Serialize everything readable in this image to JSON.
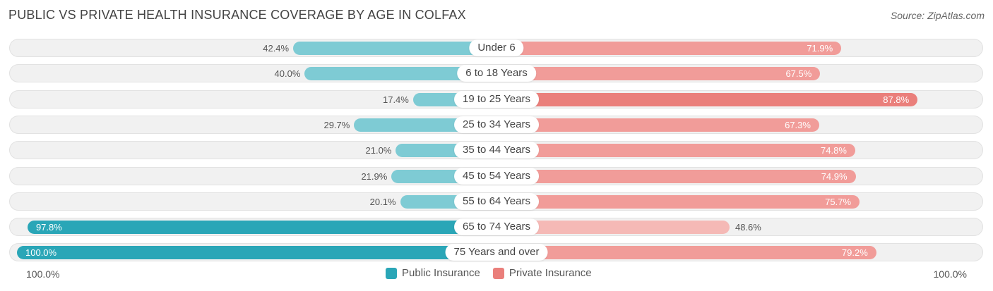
{
  "header": {
    "title": "PUBLIC VS PRIVATE HEALTH INSURANCE COVERAGE BY AGE IN COLFAX",
    "source": "Source: ZipAtlas.com"
  },
  "colors": {
    "public": "#7ecbd4",
    "public_strong": "#2aa6b7",
    "private": "#f19c99",
    "private_strong": "#ea7f7b"
  },
  "chart_data": {
    "type": "bar",
    "orientation": "horizontal-diverging",
    "title": "PUBLIC VS PRIVATE HEALTH INSURANCE COVERAGE BY AGE IN COLFAX",
    "categories": [
      "Under 6",
      "6 to 18 Years",
      "19 to 25 Years",
      "25 to 34 Years",
      "35 to 44 Years",
      "45 to 54 Years",
      "55 to 64 Years",
      "65 to 74 Years",
      "75 Years and over"
    ],
    "series": [
      {
        "name": "Public Insurance",
        "values": [
          42.4,
          40.0,
          17.4,
          29.7,
          21.0,
          21.9,
          20.1,
          97.8,
          100.0
        ],
        "labels": [
          "42.4%",
          "40.0%",
          "17.4%",
          "29.7%",
          "21.0%",
          "21.9%",
          "20.1%",
          "97.8%",
          "100.0%"
        ]
      },
      {
        "name": "Private Insurance",
        "values": [
          71.9,
          67.5,
          87.8,
          67.3,
          74.8,
          74.9,
          75.7,
          48.6,
          79.2
        ],
        "labels": [
          "71.9%",
          "67.5%",
          "87.8%",
          "67.3%",
          "74.8%",
          "74.9%",
          "75.7%",
          "48.6%",
          "79.2%"
        ]
      }
    ],
    "xlim": [
      0,
      100
    ],
    "axis_left_label": "100.0%",
    "axis_right_label": "100.0%",
    "legend": [
      "Public Insurance",
      "Private Insurance"
    ],
    "legend_position": "bottom-center"
  }
}
